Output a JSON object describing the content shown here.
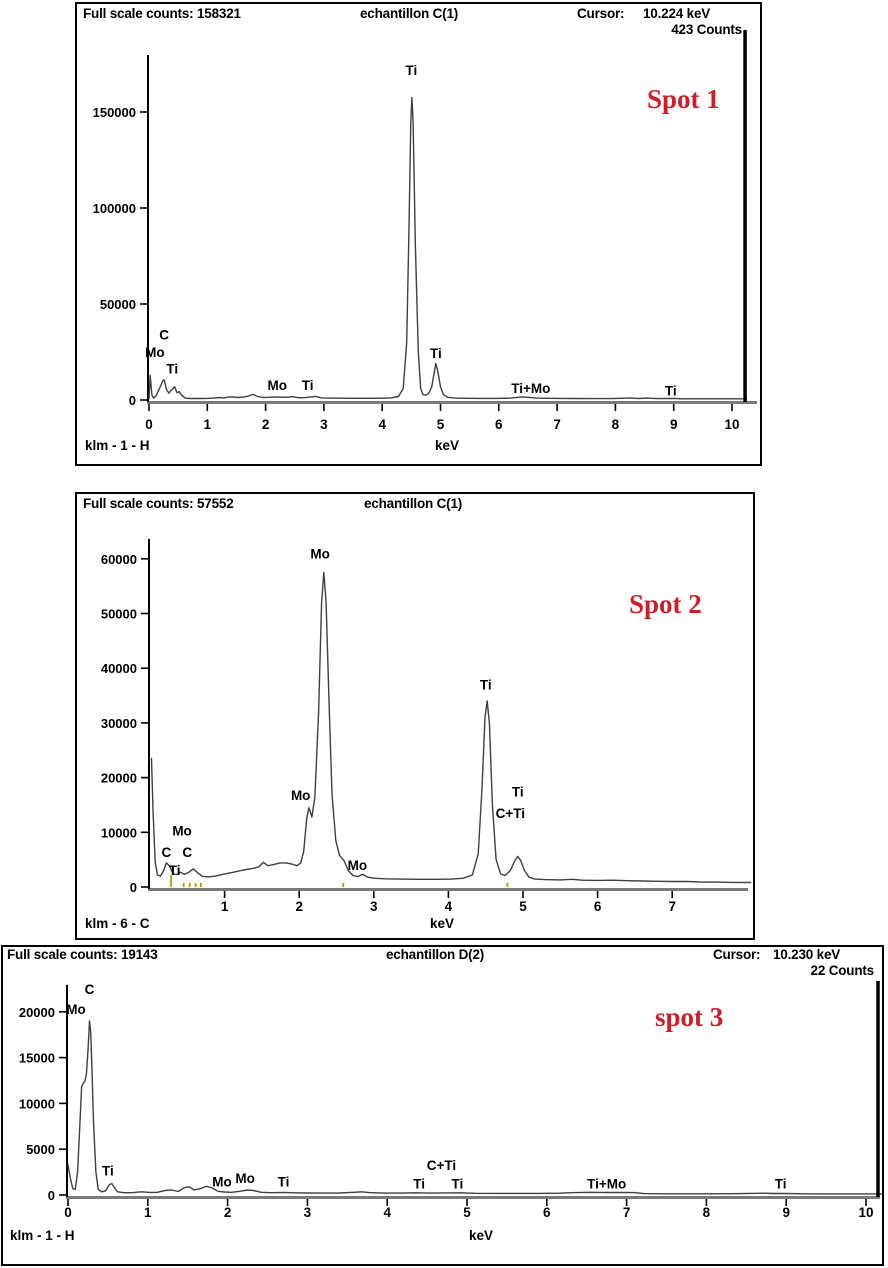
{
  "chart_data": [
    {
      "type": "line",
      "title": "echantillon C(1)",
      "header": {
        "full_scale_label": "Full scale counts: 158321",
        "sample": "echantillon C(1)",
        "cursor_label": "Cursor:",
        "cursor_kev": "10.224 keV",
        "cursor_counts": "423 Counts"
      },
      "spot_label": "Spot 1",
      "footer_left": "klm - 1 - H",
      "xlabel": "keV",
      "xlim": [
        0,
        10.25
      ],
      "ylim": [
        0,
        185000
      ],
      "x_ticks": [
        0,
        1,
        2,
        3,
        4,
        5,
        6,
        7,
        8,
        9,
        10
      ],
      "y_ticks": [
        0,
        50000,
        100000,
        150000
      ],
      "cursor_kev_value": 10.224,
      "legend": "none",
      "grid": false,
      "annotations": [
        {
          "label": "C",
          "x": 0.26,
          "y": 34000
        },
        {
          "label": "Mo",
          "x": 0.1,
          "y": 25000
        },
        {
          "label": "Ti",
          "x": 0.4,
          "y": 16500
        },
        {
          "label": "Mo",
          "x": 2.2,
          "y": 7800
        },
        {
          "label": "Ti",
          "x": 2.72,
          "y": 7800
        },
        {
          "label": "Ti",
          "x": 4.5,
          "y": 172000
        },
        {
          "label": "Ti",
          "x": 4.92,
          "y": 24500
        },
        {
          "label": "Ti+Mo",
          "x": 6.55,
          "y": 6300
        },
        {
          "label": "Ti",
          "x": 8.95,
          "y": 5000
        }
      ],
      "series": [
        [
          0.0,
          600
        ],
        [
          0.02,
          12800
        ],
        [
          0.05,
          2500
        ],
        [
          0.08,
          1000
        ],
        [
          0.12,
          2200
        ],
        [
          0.18,
          6000
        ],
        [
          0.24,
          10200
        ],
        [
          0.26,
          10500
        ],
        [
          0.3,
          5500
        ],
        [
          0.34,
          3600
        ],
        [
          0.38,
          5000
        ],
        [
          0.44,
          6900
        ],
        [
          0.48,
          3800
        ],
        [
          0.52,
          4300
        ],
        [
          0.56,
          2500
        ],
        [
          0.62,
          1000
        ],
        [
          0.7,
          800
        ],
        [
          0.85,
          800
        ],
        [
          1.0,
          850
        ],
        [
          1.12,
          1000
        ],
        [
          1.2,
          1300
        ],
        [
          1.28,
          1000
        ],
        [
          1.36,
          1500
        ],
        [
          1.44,
          1600
        ],
        [
          1.52,
          1300
        ],
        [
          1.62,
          1500
        ],
        [
          1.7,
          2000
        ],
        [
          1.78,
          2900
        ],
        [
          1.86,
          1900
        ],
        [
          1.95,
          1300
        ],
        [
          2.05,
          1400
        ],
        [
          2.15,
          1600
        ],
        [
          2.25,
          1500
        ],
        [
          2.35,
          1400
        ],
        [
          2.46,
          1700
        ],
        [
          2.56,
          1200
        ],
        [
          2.66,
          1200
        ],
        [
          2.76,
          1500
        ],
        [
          2.86,
          1900
        ],
        [
          2.96,
          1100
        ],
        [
          3.1,
          1000
        ],
        [
          3.3,
          950
        ],
        [
          3.55,
          900
        ],
        [
          3.8,
          900
        ],
        [
          4.0,
          950
        ],
        [
          4.15,
          1100
        ],
        [
          4.28,
          1800
        ],
        [
          4.36,
          6000
        ],
        [
          4.42,
          30000
        ],
        [
          4.46,
          90000
        ],
        [
          4.49,
          145000
        ],
        [
          4.51,
          157500
        ],
        [
          4.53,
          145000
        ],
        [
          4.57,
          80000
        ],
        [
          4.62,
          25000
        ],
        [
          4.66,
          6000
        ],
        [
          4.7,
          2800
        ],
        [
          4.75,
          2500
        ],
        [
          4.8,
          3500
        ],
        [
          4.85,
          7000
        ],
        [
          4.89,
          14000
        ],
        [
          4.92,
          19000
        ],
        [
          4.95,
          15500
        ],
        [
          5.0,
          7000
        ],
        [
          5.05,
          2800
        ],
        [
          5.12,
          1400
        ],
        [
          5.25,
          1000
        ],
        [
          5.45,
          900
        ],
        [
          5.7,
          850
        ],
        [
          5.95,
          850
        ],
        [
          6.2,
          1000
        ],
        [
          6.4,
          1600
        ],
        [
          6.5,
          1400
        ],
        [
          6.65,
          1000
        ],
        [
          6.85,
          900
        ],
        [
          7.05,
          850
        ],
        [
          7.3,
          800
        ],
        [
          7.6,
          750
        ],
        [
          7.9,
          750
        ],
        [
          8.1,
          900
        ],
        [
          8.25,
          1100
        ],
        [
          8.4,
          800
        ],
        [
          8.55,
          1000
        ],
        [
          8.7,
          750
        ],
        [
          8.9,
          800
        ],
        [
          9.0,
          850
        ],
        [
          9.15,
          650
        ],
        [
          9.4,
          600
        ],
        [
          9.7,
          600
        ],
        [
          10.0,
          600
        ],
        [
          10.25,
          600
        ]
      ]
    },
    {
      "type": "line",
      "title": "echantillon C(1)",
      "header": {
        "full_scale_label": "Full scale counts: 57552",
        "sample": "echantillon C(1)"
      },
      "spot_label": "Spot 2",
      "footer_left": "klm - 6 - C",
      "xlabel": "keV",
      "xlim": [
        0,
        8.05
      ],
      "ylim": [
        0,
        64000
      ],
      "x_ticks": [
        1,
        2,
        3,
        4,
        5,
        6,
        7
      ],
      "y_ticks": [
        0,
        10000,
        20000,
        30000,
        40000,
        50000,
        60000
      ],
      "legend": "none",
      "grid": false,
      "marker_tick_color": "#b09a00",
      "marker_ticks": [
        {
          "x": 0.27,
          "h": 12
        },
        {
          "x": 0.44,
          "h": 4
        },
        {
          "x": 0.52,
          "h": 4
        },
        {
          "x": 0.6,
          "h": 4
        },
        {
          "x": 0.67,
          "h": 4
        },
        {
          "x": 2.58,
          "h": 4
        },
        {
          "x": 4.78,
          "h": 4
        }
      ],
      "annotations": [
        {
          "label": "C",
          "x": 0.22,
          "y": 6400
        },
        {
          "label": "Ti",
          "x": 0.33,
          "y": 3100
        },
        {
          "label": "Mo",
          "x": 0.43,
          "y": 10300
        },
        {
          "label": "C",
          "x": 0.5,
          "y": 6400
        },
        {
          "label": "Mo",
          "x": 2.02,
          "y": 16800
        },
        {
          "label": "Mo",
          "x": 2.28,
          "y": 61000
        },
        {
          "label": "Mo",
          "x": 2.78,
          "y": 4000
        },
        {
          "label": "Ti",
          "x": 4.5,
          "y": 37000
        },
        {
          "label": "Ti",
          "x": 4.93,
          "y": 17500
        },
        {
          "label": "C+Ti",
          "x": 4.83,
          "y": 13500
        }
      ],
      "series": [
        [
          0.02,
          23500
        ],
        [
          0.04,
          14000
        ],
        [
          0.07,
          4500
        ],
        [
          0.1,
          2200
        ],
        [
          0.14,
          2000
        ],
        [
          0.18,
          2900
        ],
        [
          0.22,
          4400
        ],
        [
          0.26,
          3900
        ],
        [
          0.31,
          2400
        ],
        [
          0.36,
          2300
        ],
        [
          0.41,
          2700
        ],
        [
          0.46,
          2300
        ],
        [
          0.52,
          2700
        ],
        [
          0.58,
          3300
        ],
        [
          0.63,
          2700
        ],
        [
          0.7,
          1950
        ],
        [
          0.78,
          1850
        ],
        [
          0.88,
          2000
        ],
        [
          1.0,
          2400
        ],
        [
          1.12,
          2700
        ],
        [
          1.25,
          3100
        ],
        [
          1.38,
          3400
        ],
        [
          1.46,
          3700
        ],
        [
          1.52,
          4500
        ],
        [
          1.58,
          3900
        ],
        [
          1.66,
          4100
        ],
        [
          1.74,
          4400
        ],
        [
          1.82,
          4400
        ],
        [
          1.9,
          4200
        ],
        [
          1.97,
          3900
        ],
        [
          2.02,
          4400
        ],
        [
          2.06,
          6500
        ],
        [
          2.1,
          12500
        ],
        [
          2.13,
          14500
        ],
        [
          2.17,
          12800
        ],
        [
          2.21,
          16500
        ],
        [
          2.26,
          32000
        ],
        [
          2.3,
          52000
        ],
        [
          2.33,
          57500
        ],
        [
          2.36,
          52000
        ],
        [
          2.4,
          34000
        ],
        [
          2.44,
          17000
        ],
        [
          2.49,
          8500
        ],
        [
          2.54,
          5800
        ],
        [
          2.6,
          4800
        ],
        [
          2.66,
          3000
        ],
        [
          2.72,
          2100
        ],
        [
          2.79,
          1900
        ],
        [
          2.85,
          2300
        ],
        [
          2.92,
          1800
        ],
        [
          3.0,
          1600
        ],
        [
          3.15,
          1500
        ],
        [
          3.35,
          1450
        ],
        [
          3.6,
          1400
        ],
        [
          3.85,
          1400
        ],
        [
          4.05,
          1450
        ],
        [
          4.2,
          1600
        ],
        [
          4.32,
          2200
        ],
        [
          4.4,
          6000
        ],
        [
          4.45,
          18000
        ],
        [
          4.49,
          31000
        ],
        [
          4.52,
          34000
        ],
        [
          4.55,
          30000
        ],
        [
          4.59,
          15000
        ],
        [
          4.64,
          5000
        ],
        [
          4.7,
          2400
        ],
        [
          4.76,
          2100
        ],
        [
          4.83,
          3000
        ],
        [
          4.89,
          4800
        ],
        [
          4.93,
          5600
        ],
        [
          4.97,
          4800
        ],
        [
          5.02,
          3000
        ],
        [
          5.08,
          1800
        ],
        [
          5.16,
          1450
        ],
        [
          5.3,
          1350
        ],
        [
          5.5,
          1300
        ],
        [
          5.65,
          1400
        ],
        [
          5.8,
          1250
        ],
        [
          6.0,
          1200
        ],
        [
          6.2,
          1250
        ],
        [
          6.4,
          1150
        ],
        [
          6.6,
          1100
        ],
        [
          6.8,
          1050
        ],
        [
          7.0,
          1000
        ],
        [
          7.2,
          1000
        ],
        [
          7.4,
          900
        ],
        [
          7.6,
          900
        ],
        [
          7.8,
          850
        ],
        [
          8.05,
          820
        ]
      ]
    },
    {
      "type": "line",
      "title": "echantillon D(2)",
      "header": {
        "full_scale_label": "Full scale counts: 19143",
        "sample": "echantillon D(2)",
        "cursor_label": "Cursor:",
        "cursor_kev": "10.230 keV",
        "cursor_counts": "22 Counts"
      },
      "spot_label": "spot 3",
      "footer_left": "klm - 1 - H",
      "xlabel": "keV",
      "xlim": [
        0,
        10.3
      ],
      "ylim": [
        0,
        23000
      ],
      "x_ticks": [
        0,
        1,
        2,
        3,
        4,
        5,
        6,
        7,
        8,
        9,
        10
      ],
      "y_ticks": [
        0,
        5000,
        10000,
        15000,
        20000
      ],
      "cursor_kev_value": 10.23,
      "legend": "none",
      "grid": false,
      "annotations": [
        {
          "label": "C",
          "x": 0.27,
          "y": 22500
        },
        {
          "label": "Mo",
          "x": 0.1,
          "y": 20300
        },
        {
          "label": "Ti",
          "x": 0.5,
          "y": 2700
        },
        {
          "label": "Mo",
          "x": 1.93,
          "y": 1500
        },
        {
          "label": "Mo",
          "x": 2.22,
          "y": 1850
        },
        {
          "label": "Ti",
          "x": 2.7,
          "y": 1500
        },
        {
          "label": "Ti",
          "x": 4.4,
          "y": 1250
        },
        {
          "label": "C+Ti",
          "x": 4.68,
          "y": 3300
        },
        {
          "label": "Ti",
          "x": 4.88,
          "y": 1250
        },
        {
          "label": "Ti+Mo",
          "x": 6.75,
          "y": 1250
        },
        {
          "label": "Ti",
          "x": 8.93,
          "y": 1250
        }
      ],
      "series": [
        [
          0.0,
          3300
        ],
        [
          0.03,
          1800
        ],
        [
          0.06,
          700
        ],
        [
          0.09,
          600
        ],
        [
          0.12,
          2500
        ],
        [
          0.15,
          8000
        ],
        [
          0.17,
          11800
        ],
        [
          0.19,
          12200
        ],
        [
          0.21,
          12400
        ],
        [
          0.23,
          13200
        ],
        [
          0.25,
          15800
        ],
        [
          0.27,
          19000
        ],
        [
          0.285,
          17800
        ],
        [
          0.3,
          14000
        ],
        [
          0.32,
          8000
        ],
        [
          0.35,
          2500
        ],
        [
          0.38,
          600
        ],
        [
          0.42,
          350
        ],
        [
          0.47,
          450
        ],
        [
          0.52,
          1150
        ],
        [
          0.55,
          1250
        ],
        [
          0.58,
          800
        ],
        [
          0.62,
          350
        ],
        [
          0.7,
          250
        ],
        [
          0.8,
          250
        ],
        [
          0.92,
          350
        ],
        [
          1.02,
          280
        ],
        [
          1.12,
          300
        ],
        [
          1.22,
          500
        ],
        [
          1.3,
          550
        ],
        [
          1.38,
          380
        ],
        [
          1.46,
          800
        ],
        [
          1.52,
          900
        ],
        [
          1.58,
          550
        ],
        [
          1.66,
          700
        ],
        [
          1.73,
          950
        ],
        [
          1.8,
          800
        ],
        [
          1.88,
          400
        ],
        [
          1.96,
          330
        ],
        [
          2.05,
          300
        ],
        [
          2.15,
          400
        ],
        [
          2.25,
          550
        ],
        [
          2.32,
          500
        ],
        [
          2.42,
          300
        ],
        [
          2.55,
          250
        ],
        [
          2.7,
          280
        ],
        [
          2.85,
          240
        ],
        [
          3.0,
          220
        ],
        [
          3.2,
          210
        ],
        [
          3.4,
          220
        ],
        [
          3.58,
          300
        ],
        [
          3.68,
          350
        ],
        [
          3.78,
          260
        ],
        [
          3.95,
          210
        ],
        [
          4.15,
          210
        ],
        [
          4.35,
          240
        ],
        [
          4.55,
          210
        ],
        [
          4.75,
          230
        ],
        [
          4.92,
          240
        ],
        [
          5.1,
          190
        ],
        [
          5.35,
          180
        ],
        [
          5.6,
          180
        ],
        [
          5.9,
          180
        ],
        [
          6.15,
          200
        ],
        [
          6.35,
          260
        ],
        [
          6.55,
          290
        ],
        [
          6.75,
          270
        ],
        [
          6.95,
          280
        ],
        [
          7.1,
          260
        ],
        [
          7.22,
          150
        ],
        [
          7.45,
          130
        ],
        [
          7.7,
          130
        ],
        [
          8.0,
          130
        ],
        [
          8.3,
          140
        ],
        [
          8.55,
          180
        ],
        [
          8.7,
          200
        ],
        [
          8.85,
          160
        ],
        [
          9.0,
          160
        ],
        [
          9.2,
          130
        ],
        [
          9.5,
          120
        ],
        [
          9.8,
          115
        ],
        [
          10.1,
          115
        ],
        [
          10.28,
          115
        ]
      ]
    }
  ],
  "colors": {
    "trace": "#3f3f3f",
    "axis": "#000000",
    "axis_band": "#7a7a7a",
    "spot_red": "#cc2028",
    "marker_yellow": "#b09a00"
  }
}
